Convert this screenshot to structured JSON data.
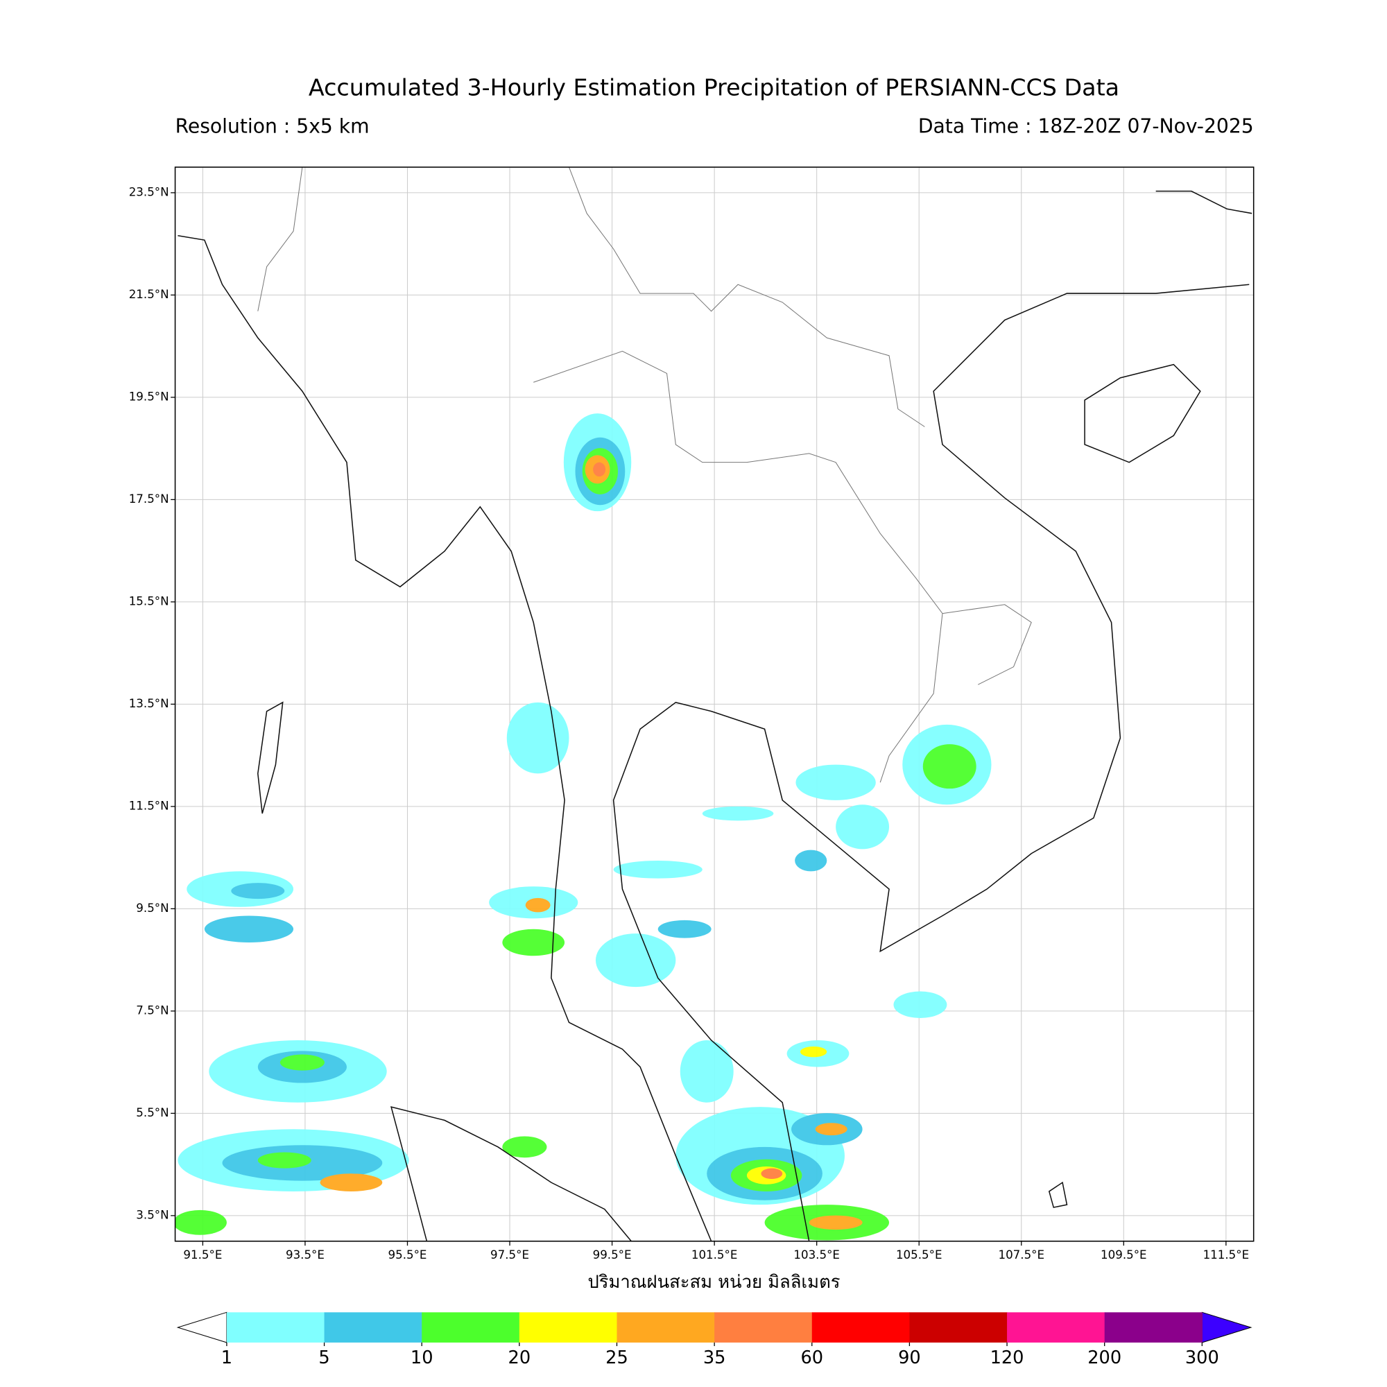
{
  "header": {
    "title": "Accumulated 3-Hourly Estimation Precipitation of PERSIANN-CCS Data",
    "resolution": "Resolution : 5x5 km",
    "data_time": "Data Time : 18Z-20Z 07-Nov-2025"
  },
  "map": {
    "lon_range": [
      90.96,
      112.04
    ],
    "lat_range": [
      3.0,
      24.0
    ],
    "grid": true,
    "x_label": "ปริมาณฝนสะสม หน่วย มิลลิเมตร",
    "lon_ticks": [
      {
        "value": 91.5,
        "label": "91.5°E"
      },
      {
        "value": 93.5,
        "label": "93.5°E"
      },
      {
        "value": 95.5,
        "label": "95.5°E"
      },
      {
        "value": 97.5,
        "label": "97.5°E"
      },
      {
        "value": 99.5,
        "label": "99.5°E"
      },
      {
        "value": 101.5,
        "label": "101.5°E"
      },
      {
        "value": 103.5,
        "label": "103.5°E"
      },
      {
        "value": 105.5,
        "label": "105.5°E"
      },
      {
        "value": 107.5,
        "label": "107.5°E"
      },
      {
        "value": 109.5,
        "label": "109.5°E"
      },
      {
        "value": 111.5,
        "label": "111.5°E"
      }
    ],
    "lat_ticks": [
      {
        "value": 23.5,
        "label": "23.5°N"
      },
      {
        "value": 21.5,
        "label": "21.5°N"
      },
      {
        "value": 19.5,
        "label": "19.5°N"
      },
      {
        "value": 17.5,
        "label": "17.5°N"
      },
      {
        "value": 15.5,
        "label": "15.5°N"
      },
      {
        "value": 13.5,
        "label": "13.5°N"
      },
      {
        "value": 11.5,
        "label": "11.5°N"
      },
      {
        "value": 9.5,
        "label": "9.5°N"
      },
      {
        "value": 7.5,
        "label": "7.5°N"
      },
      {
        "value": 5.5,
        "label": "5.5°N"
      },
      {
        "value": 3.5,
        "label": "3.5°N"
      }
    ]
  },
  "colorbar": {
    "levels": [
      1,
      5,
      10,
      20,
      25,
      35,
      60,
      90,
      120,
      200,
      300
    ],
    "colors": [
      "#80ffff",
      "#40c8e8",
      "#4cff2c",
      "#ffff00",
      "#ffa820",
      "#ff7f40",
      "#ff0000",
      "#cc0000",
      "#ff1493",
      "#8b008b"
    ],
    "under_color": "#ffffff",
    "over_color": "#3c00ff"
  }
}
